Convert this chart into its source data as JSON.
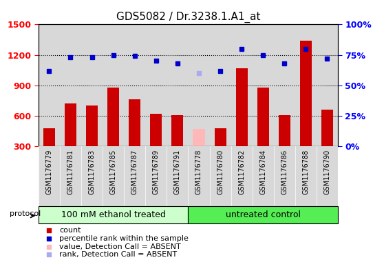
{
  "title": "GDS5082 / Dr.3238.1.A1_at",
  "samples": [
    "GSM1176779",
    "GSM1176781",
    "GSM1176783",
    "GSM1176785",
    "GSM1176787",
    "GSM1176789",
    "GSM1176791",
    "GSM1176778",
    "GSM1176780",
    "GSM1176782",
    "GSM1176784",
    "GSM1176786",
    "GSM1176788",
    "GSM1176790"
  ],
  "counts": [
    480,
    720,
    700,
    880,
    760,
    620,
    610,
    470,
    480,
    1070,
    880,
    610,
    1340,
    660
  ],
  "ranks": [
    62,
    73,
    73,
    75,
    74,
    70,
    68,
    60,
    62,
    80,
    75,
    68,
    80,
    72
  ],
  "absent_count_idx": [
    7
  ],
  "absent_rank_idx": [
    7
  ],
  "group1_label": "100 mM ethanol treated",
  "group2_label": "untreated control",
  "group1_count": 7,
  "group2_count": 7,
  "ylim_left": [
    300,
    1500
  ],
  "ylim_right": [
    0,
    100
  ],
  "yticks_left": [
    300,
    600,
    900,
    1200,
    1500
  ],
  "yticks_right": [
    0,
    25,
    50,
    75,
    100
  ],
  "ytick_labels_left": [
    "300",
    "600",
    "900",
    "1200",
    "1500"
  ],
  "ytick_labels_right": [
    "0%",
    "25%",
    "50%",
    "75%",
    "100%"
  ],
  "bar_color": "#cc0000",
  "bar_absent_color": "#ffb8b8",
  "dot_color": "#0000cc",
  "dot_absent_color": "#aaaaee",
  "group1_bg": "#ccffcc",
  "group2_bg": "#55ee55",
  "tick_bg_color": "#d8d8d8",
  "plot_bg_color": "#ffffff",
  "legend_items": [
    {
      "color": "#cc0000",
      "label": "count"
    },
    {
      "color": "#0000cc",
      "label": "percentile rank within the sample"
    },
    {
      "color": "#ffb8b8",
      "label": "value, Detection Call = ABSENT"
    },
    {
      "color": "#aaaaee",
      "label": "rank, Detection Call = ABSENT"
    }
  ]
}
